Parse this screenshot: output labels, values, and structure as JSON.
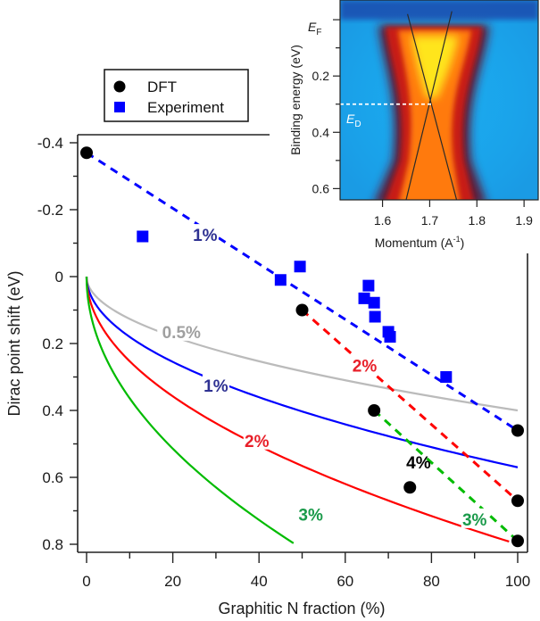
{
  "chart_data": {
    "type": "scatter",
    "title": "",
    "xlabel": "Graphitic N fraction (%)",
    "ylabel": "Dirac point shift (eV)",
    "xlim": [
      0,
      100
    ],
    "ylim": [
      -0.4,
      0.8
    ],
    "y_inverted": true,
    "x_ticks": [
      "0",
      "20",
      "40",
      "60",
      "80",
      "100"
    ],
    "x_tick_values": [
      0,
      20,
      40,
      60,
      80,
      100
    ],
    "y_ticks": [
      "-0.4",
      "-0.2",
      "0",
      "0.2",
      "0.4",
      "0.6",
      "0.8"
    ],
    "y_tick_values": [
      -0.4,
      -0.2,
      0,
      0.2,
      0.4,
      0.6,
      0.8
    ],
    "grid": false,
    "legend": {
      "placement": "top-left",
      "entries": [
        {
          "label": "DFT",
          "marker": "circle",
          "color": "#000000"
        },
        {
          "label": "Experiment",
          "marker": "square",
          "color": "#0000ff"
        }
      ]
    },
    "series": [
      {
        "name": "DFT",
        "kind": "points",
        "marker": "circle",
        "color": "#000000",
        "points": [
          [
            0,
            -0.37
          ],
          [
            50,
            0.1
          ],
          [
            66.7,
            0.4
          ],
          [
            75,
            0.63
          ],
          [
            100,
            0.46
          ],
          [
            100,
            0.67
          ],
          [
            100,
            0.79
          ]
        ]
      },
      {
        "name": "Experiment",
        "kind": "points",
        "marker": "square",
        "color": "#0000ff",
        "points": [
          [
            13,
            -0.12
          ],
          [
            45,
            0.01
          ],
          [
            49.5,
            -0.03
          ],
          [
            64.4,
            0.065
          ],
          [
            65.4,
            0.027
          ],
          [
            66.7,
            0.078
          ],
          [
            66.9,
            0.12
          ],
          [
            70,
            0.165
          ],
          [
            70.4,
            0.18
          ],
          [
            83.4,
            0.3
          ]
        ]
      },
      {
        "name": "1% DFT trend",
        "kind": "dashed",
        "color": "#0000ff",
        "points": [
          [
            0,
            -0.37
          ],
          [
            100,
            0.46
          ]
        ]
      },
      {
        "name": "2% DFT trend",
        "kind": "dashed",
        "color": "#ff0000",
        "points": [
          [
            50,
            0.1
          ],
          [
            100,
            0.67
          ]
        ]
      },
      {
        "name": "3% DFT trend",
        "kind": "dashed",
        "color": "#00bb00",
        "points": [
          [
            66.7,
            0.4
          ],
          [
            100,
            0.79
          ]
        ]
      },
      {
        "name": "0.5% model",
        "kind": "curve",
        "color": "#bbbbbb",
        "formula": "y = 0.040*sqrt(x)",
        "coef": 0.04,
        "x_range": [
          0,
          100
        ]
      },
      {
        "name": "1% model",
        "kind": "curve",
        "color": "#0000ff",
        "formula": "y = 0.057*sqrt(x)",
        "coef": 0.057,
        "x_range": [
          0,
          100
        ]
      },
      {
        "name": "2% model",
        "kind": "curve",
        "color": "#ff0000",
        "formula": "y = 0.080*sqrt(x)",
        "coef": 0.08,
        "x_range": [
          0,
          98
        ]
      },
      {
        "name": "3% model",
        "kind": "curve",
        "color": "#00bb00",
        "formula": "y = 0.115*sqrt(x)",
        "coef": 0.115,
        "x_range": [
          0,
          48
        ]
      }
    ],
    "annotations": [
      {
        "text": "1%",
        "x": 27.5,
        "y": -0.125,
        "color": "#2e3192",
        "target": "1% DFT trend"
      },
      {
        "text": "2%",
        "x": 64.5,
        "y": 0.265,
        "color": "#e8202a",
        "target": "2% DFT trend"
      },
      {
        "text": "3%",
        "x": 90,
        "y": 0.725,
        "color": "#1a9a4a",
        "target": "3% DFT trend"
      },
      {
        "text": "4%",
        "x": 77,
        "y": 0.555,
        "color": "#000000",
        "target": "4% DFT point"
      },
      {
        "text": "0.5%",
        "x": 22,
        "y": 0.165,
        "color": "#a0a0a0",
        "target": "0.5% model"
      },
      {
        "text": "1%",
        "x": 30,
        "y": 0.325,
        "color": "#2e3192",
        "target": "1% model"
      },
      {
        "text": "2%",
        "x": 39.5,
        "y": 0.49,
        "color": "#e8202a",
        "target": "2% model"
      },
      {
        "text": "3%",
        "x": 52,
        "y": 0.71,
        "color": "#1a9a4a",
        "target": "3% model"
      }
    ],
    "inset": {
      "type": "heatmap",
      "description": "ARPES intensity map showing a Dirac cone",
      "xlabel": "Momentum (A",
      "xlabel_sup": "-1",
      "xlabel_close": ")",
      "ylabel": "Binding energy (eV)",
      "xlim": [
        1.51,
        1.93
      ],
      "ylim": [
        -0.07,
        0.64
      ],
      "y_inverted": true,
      "x_ticks": [
        "1.6",
        "1.7",
        "1.8",
        "1.9"
      ],
      "x_tick_values": [
        1.6,
        1.7,
        1.8,
        1.9
      ],
      "y_ticks": [
        "0.2",
        "0.4",
        "0.6"
      ],
      "y_tick_values": [
        0.2,
        0.4,
        0.6
      ],
      "y_minor_tick_values": [
        0.1,
        0.3,
        0.5
      ],
      "ef_label": "E",
      "ef_sub": "F",
      "ef_value": 0.0,
      "ed_label": "E",
      "ed_sub": "D",
      "ed_value": 0.3,
      "dirac_point": [
        1.705,
        0.3
      ],
      "band_lines": [
        [
          [
            1.653,
            -0.02
          ],
          [
            1.757,
            0.64
          ]
        ],
        [
          [
            1.747,
            -0.03
          ],
          [
            1.65,
            0.64
          ]
        ]
      ],
      "colormap": [
        "#1e3a9e",
        "#1ba9ee",
        "#7a1020",
        "#d62410",
        "#ff7a0a",
        "#ffe51a"
      ]
    }
  }
}
